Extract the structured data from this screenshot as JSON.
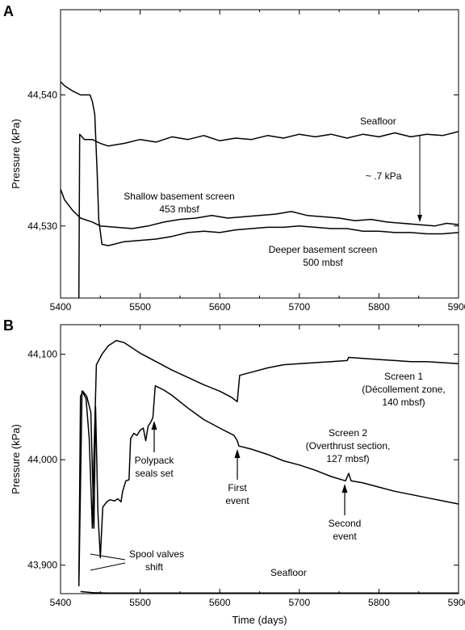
{
  "chart_data": [
    {
      "type": "line",
      "panel": "A",
      "ylabel": "Pressure (kPa)",
      "xlabel": "",
      "xlim": [
        5400,
        5900
      ],
      "ylim": [
        44524.5,
        44546.5
      ],
      "x_ticks": [
        5400,
        5500,
        5600,
        5700,
        5800,
        5900
      ],
      "x_tick_labels": [
        "5400",
        "5500",
        "5600",
        "5700",
        "5800",
        "5900"
      ],
      "y_ticks": [
        44530,
        44540
      ],
      "y_tick_labels": [
        "44,530",
        "44,540"
      ],
      "series": [
        {
          "points": [
            [
              5423,
              44524.5
            ],
            [
              5424,
              44537
            ],
            [
              5430,
              44536.6
            ],
            [
              5440,
              44536.6
            ],
            [
              5450,
              44536.3
            ],
            [
              5460,
              44536.1
            ],
            [
              5480,
              44536.3
            ],
            [
              5500,
              44536.6
            ],
            [
              5520,
              44536.4
            ],
            [
              5540,
              44536.8
            ],
            [
              5560,
              44536.6
            ],
            [
              5580,
              44536.9
            ],
            [
              5600,
              44536.5
            ],
            [
              5620,
              44536.7
            ],
            [
              5640,
              44536.6
            ],
            [
              5660,
              44536.9
            ],
            [
              5680,
              44536.7
            ],
            [
              5700,
              44537
            ],
            [
              5720,
              44536.8
            ],
            [
              5740,
              44537
            ],
            [
              5760,
              44536.7
            ],
            [
              5780,
              44537
            ],
            [
              5800,
              44536.8
            ],
            [
              5820,
              44537.1
            ],
            [
              5840,
              44536.8
            ],
            [
              5860,
              44537
            ],
            [
              5880,
              44536.9
            ],
            [
              5900,
              44537.2
            ]
          ],
          "color": "#000000"
        },
        {
          "points": [
            [
              5400,
              44532.8
            ],
            [
              5405,
              44532
            ],
            [
              5415,
              44531.2
            ],
            [
              5425,
              44530.6
            ],
            [
              5440,
              44530.3
            ],
            [
              5450,
              44530
            ],
            [
              5470,
              44529.9
            ],
            [
              5490,
              44529.8
            ],
            [
              5510,
              44530
            ],
            [
              5530,
              44530.3
            ],
            [
              5550,
              44530.5
            ],
            [
              5570,
              44530.6
            ],
            [
              5590,
              44530.8
            ],
            [
              5610,
              44530.6
            ],
            [
              5630,
              44530.7
            ],
            [
              5650,
              44530.8
            ],
            [
              5670,
              44530.9
            ],
            [
              5690,
              44531.1
            ],
            [
              5710,
              44530.8
            ],
            [
              5730,
              44530.7
            ],
            [
              5750,
              44530.6
            ],
            [
              5770,
              44530.4
            ],
            [
              5790,
              44530.5
            ],
            [
              5810,
              44530.3
            ],
            [
              5830,
              44530.2
            ],
            [
              5850,
              44530.1
            ],
            [
              5870,
              44530
            ],
            [
              5885,
              44530.2
            ],
            [
              5900,
              44530.1
            ]
          ],
          "color": "#000000"
        },
        {
          "points": [
            [
              5400,
              44541
            ],
            [
              5405,
              44540.7
            ],
            [
              5415,
              44540.3
            ],
            [
              5425,
              44540
            ],
            [
              5437,
              44540
            ],
            [
              5440,
              44539.5
            ],
            [
              5443,
              44538.5
            ],
            [
              5446,
              44534
            ],
            [
              5448,
              44530.5
            ],
            [
              5452,
              44528.6
            ],
            [
              5460,
              44528.5
            ],
            [
              5480,
              44528.8
            ],
            [
              5500,
              44528.9
            ],
            [
              5520,
              44529
            ],
            [
              5540,
              44529.2
            ],
            [
              5560,
              44529.5
            ],
            [
              5580,
              44529.6
            ],
            [
              5600,
              44529.5
            ],
            [
              5620,
              44529.7
            ],
            [
              5640,
              44529.8
            ],
            [
              5660,
              44529.9
            ],
            [
              5680,
              44529.9
            ],
            [
              5700,
              44530
            ],
            [
              5720,
              44529.9
            ],
            [
              5740,
              44529.8
            ],
            [
              5760,
              44529.8
            ],
            [
              5780,
              44529.6
            ],
            [
              5800,
              44529.6
            ],
            [
              5820,
              44529.5
            ],
            [
              5840,
              44529.5
            ],
            [
              5860,
              44529.4
            ],
            [
              5880,
              44529.4
            ],
            [
              5900,
              44529.5
            ]
          ],
          "color": "#000000"
        }
      ]
    },
    {
      "type": "line",
      "panel": "B",
      "ylabel": "Pressure (kPa)",
      "xlabel": "Time (days)",
      "xlim": [
        5400,
        5900
      ],
      "ylim": [
        43873,
        44128
      ],
      "x_ticks": [
        5400,
        5500,
        5600,
        5700,
        5800,
        5900
      ],
      "x_tick_labels": [
        "5400",
        "5500",
        "5600",
        "5700",
        "5800",
        "5900"
      ],
      "y_ticks": [
        43900,
        44000,
        44100
      ],
      "y_tick_labels": [
        "43,900",
        "44,000",
        "44,100"
      ],
      "series": [
        {
          "points": [
            [
              5423,
              43880
            ],
            [
              5427,
              44065
            ],
            [
              5432,
              44058
            ],
            [
              5436,
              44020
            ],
            [
              5440,
              43935
            ],
            [
              5442,
              44005
            ],
            [
              5445,
              44090
            ],
            [
              5452,
              44100
            ],
            [
              5460,
              44108
            ],
            [
              5470,
              44113
            ],
            [
              5480,
              44111
            ],
            [
              5500,
              44101
            ],
            [
              5520,
              44093
            ],
            [
              5540,
              44085
            ],
            [
              5560,
              44078
            ],
            [
              5580,
              44071
            ],
            [
              5600,
              44065
            ],
            [
              5615,
              44059
            ],
            [
              5622,
              44055
            ],
            [
              5625,
              44080
            ],
            [
              5640,
              44083
            ],
            [
              5660,
              44087
            ],
            [
              5680,
              44090
            ],
            [
              5700,
              44091
            ],
            [
              5720,
              44092
            ],
            [
              5740,
              44093
            ],
            [
              5760,
              44094
            ],
            [
              5762,
              44097
            ],
            [
              5780,
              44096
            ],
            [
              5800,
              44095
            ],
            [
              5820,
              44094
            ],
            [
              5840,
              44093
            ],
            [
              5860,
              44093
            ],
            [
              5880,
              44092
            ],
            [
              5900,
              44091
            ]
          ],
          "color": "#000000"
        },
        {
          "points": [
            [
              5423,
              43885
            ],
            [
              5425,
              44060
            ],
            [
              5428,
              44065
            ],
            [
              5433,
              44060
            ],
            [
              5438,
              44045
            ],
            [
              5442,
              43935
            ],
            [
              5444,
              44050
            ],
            [
              5447,
              43950
            ],
            [
              5450,
              43907
            ],
            [
              5453,
              43955
            ],
            [
              5458,
              43960
            ],
            [
              5462,
              43962
            ],
            [
              5468,
              43961
            ],
            [
              5472,
              43963
            ],
            [
              5476,
              43960
            ],
            [
              5478,
              43970
            ],
            [
              5482,
              43980
            ],
            [
              5486,
              43981
            ],
            [
              5488,
              44020
            ],
            [
              5492,
              44025
            ],
            [
              5496,
              44023
            ],
            [
              5500,
              44028
            ],
            [
              5504,
              44030
            ],
            [
              5507,
              44018
            ],
            [
              5510,
              44032
            ],
            [
              5513,
              44035
            ],
            [
              5516,
              44040
            ],
            [
              5519,
              44070
            ],
            [
              5530,
              44066
            ],
            [
              5540,
              44061
            ],
            [
              5560,
              44049
            ],
            [
              5580,
              44038
            ],
            [
              5600,
              44030
            ],
            [
              5618,
              44023
            ],
            [
              5622,
              44018
            ],
            [
              5624,
              44013
            ],
            [
              5640,
              44010
            ],
            [
              5660,
              44005
            ],
            [
              5680,
              43999
            ],
            [
              5700,
              43995
            ],
            [
              5720,
              43990
            ],
            [
              5740,
              43984
            ],
            [
              5758,
              43980
            ],
            [
              5762,
              43987
            ],
            [
              5765,
              43980
            ],
            [
              5780,
              43978
            ],
            [
              5800,
              43974
            ],
            [
              5820,
              43970
            ],
            [
              5840,
              43967
            ],
            [
              5860,
              43964
            ],
            [
              5880,
              43961
            ],
            [
              5900,
              43958
            ]
          ],
          "color": "#000000"
        },
        {
          "points": [
            [
              5425,
              43875
            ],
            [
              5440,
              43874
            ],
            [
              5460,
              43873.5
            ],
            [
              5500,
              43873.5
            ],
            [
              5600,
              43873.5
            ],
            [
              5700,
              43873.5
            ],
            [
              5800,
              43873.5
            ],
            [
              5900,
              43873.5
            ]
          ],
          "color": "#000000"
        }
      ]
    }
  ],
  "labels": {
    "panel_a_letter": "A",
    "panel_b_letter": "B",
    "a_seafloor": "Seafloor",
    "a_kpa": "~ .7 kPa",
    "a_shallow_1": "Shallow basement screen",
    "a_shallow_2": "453 mbsf",
    "a_deeper_1": "Deeper basement screen",
    "a_deeper_2": "500 mbsf",
    "b_screen1_1": "Screen 1",
    "b_screen1_2": "(Décollement zone,",
    "b_screen1_3": "140 mbsf)",
    "b_screen2_1": "Screen 2",
    "b_screen2_2": "(Overthrust section,",
    "b_screen2_3": "127 mbsf)",
    "b_polypack_1": "Polypack",
    "b_polypack_2": "seals set",
    "b_first_1": "First",
    "b_first_2": "event",
    "b_second_1": "Second",
    "b_second_2": "event",
    "b_spool_1": "Spool valves",
    "b_spool_2": "shift",
    "b_seafloor": "Seafloor"
  }
}
